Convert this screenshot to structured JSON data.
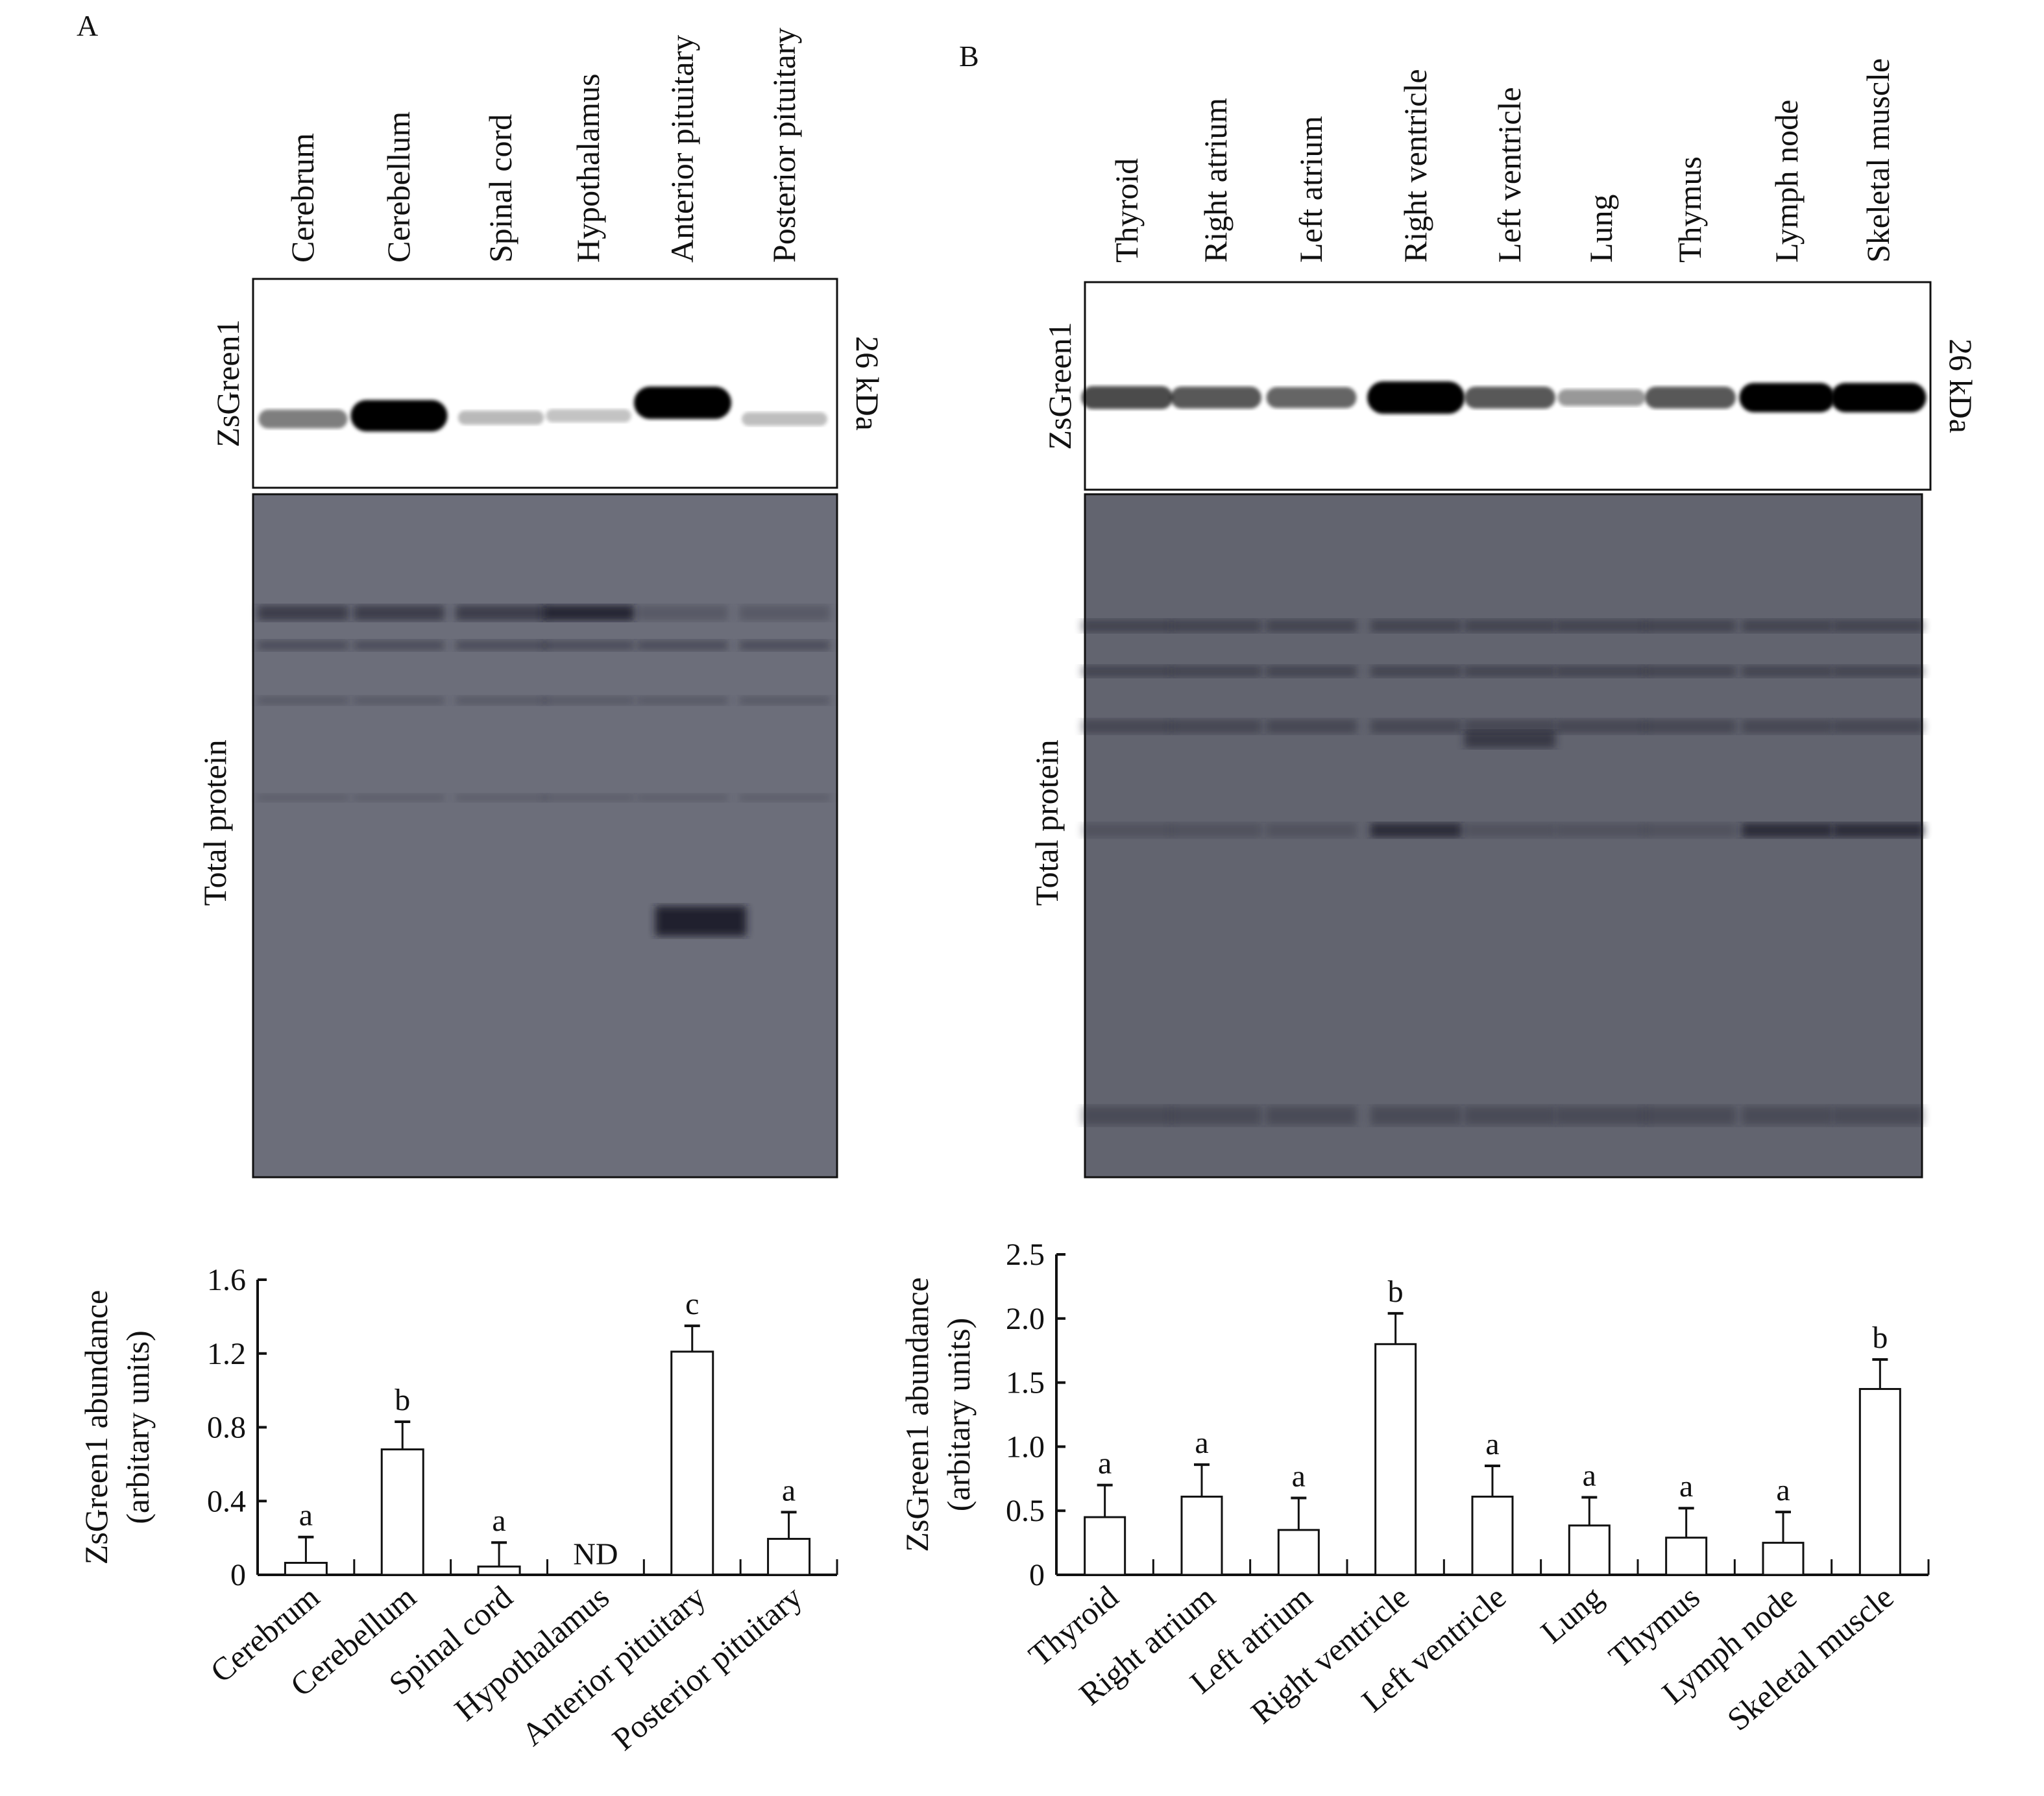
{
  "panels": {
    "A": {
      "letter": "A",
      "lanes": [
        "Cerebrum",
        "Cerebellum",
        "Spinal cord",
        "Hypothalamus",
        "Anterior pituitary",
        "Posterior pituitary"
      ],
      "blot_label": "ZsGreen1",
      "size_label": "26 kDa",
      "loading_label": "Total protein"
    },
    "B": {
      "letter": "B",
      "lanes": [
        "Thyroid",
        "Right atrium",
        "Left atrium",
        "Right ventricle",
        "Left ventricle",
        "Lung",
        "Thymus",
        "Lymph node",
        "Skeletal muscle"
      ],
      "blot_label": "ZsGreen1",
      "size_label": "26 kDa",
      "loading_label": "Total protein"
    }
  },
  "chart_data": [
    {
      "type": "bar",
      "panel": "A",
      "ylabel": [
        "ZsGreen1 abundance",
        "(arbitary units)"
      ],
      "categories": [
        "Cerebrum",
        "Cerebellum",
        "Spinal cord",
        "Hypothalamus",
        "Anterior pituitary",
        "Posterior pituitary"
      ],
      "values": [
        0.065,
        0.68,
        0.045,
        null,
        1.21,
        0.195
      ],
      "error": [
        0.14,
        0.15,
        0.13,
        null,
        0.14,
        0.145
      ],
      "annotations": [
        "a",
        "b",
        "a",
        "ND",
        "c",
        "a"
      ],
      "ylim": [
        0,
        1.6
      ],
      "yticks": [
        0,
        0.4,
        0.8,
        1.2,
        1.6
      ],
      "ytick_labels": [
        "0",
        "0.4",
        "0.8",
        "1.2",
        "1.6"
      ],
      "grid": false
    },
    {
      "type": "bar",
      "panel": "B",
      "ylabel": [
        "ZsGreen1 abundance",
        "(arbitary units)"
      ],
      "categories": [
        "Thyroid",
        "Right atrium",
        "Left atrium",
        "Right ventricle",
        "Left ventricle",
        "Lung",
        "Thymus",
        "Lymph node",
        "Skeletal muscle"
      ],
      "values": [
        0.45,
        0.61,
        0.35,
        1.8,
        0.61,
        0.385,
        0.29,
        0.25,
        1.45
      ],
      "error": [
        0.25,
        0.25,
        0.25,
        0.24,
        0.24,
        0.22,
        0.23,
        0.24,
        0.23
      ],
      "annotations": [
        "a",
        "a",
        "a",
        "b",
        "a",
        "a",
        "a",
        "a",
        "b"
      ],
      "ylim": [
        0,
        2.5
      ],
      "yticks": [
        0,
        0.5,
        1.0,
        1.5,
        2.0,
        2.5
      ],
      "ytick_labels": [
        "0",
        "0.5",
        "1.0",
        "1.5",
        "2.0",
        "2.5"
      ],
      "grid": false
    }
  ]
}
